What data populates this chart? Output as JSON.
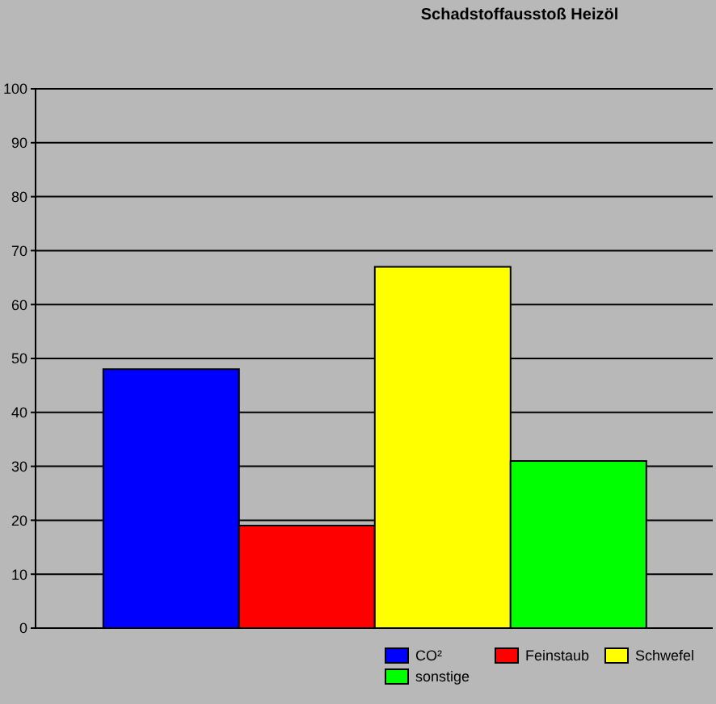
{
  "chart_data": {
    "type": "bar",
    "title": "Schadstoffausstoß Heizöl",
    "categories": [
      null
    ],
    "series": [
      {
        "name": "CO²",
        "color": "#0000ff",
        "values": [
          48
        ]
      },
      {
        "name": "Feinstaub",
        "color": "#ff0000",
        "values": [
          19
        ]
      },
      {
        "name": "Schwefel",
        "color": "#ffff00",
        "values": [
          67
        ]
      },
      {
        "name": "sonstige",
        "color": "#00ff00",
        "values": [
          31
        ]
      }
    ],
    "ylim": [
      0,
      100
    ],
    "yticks": [
      0,
      10,
      20,
      30,
      40,
      50,
      60,
      70,
      80,
      90,
      100
    ],
    "grid": "y",
    "legend": "bottom right"
  }
}
